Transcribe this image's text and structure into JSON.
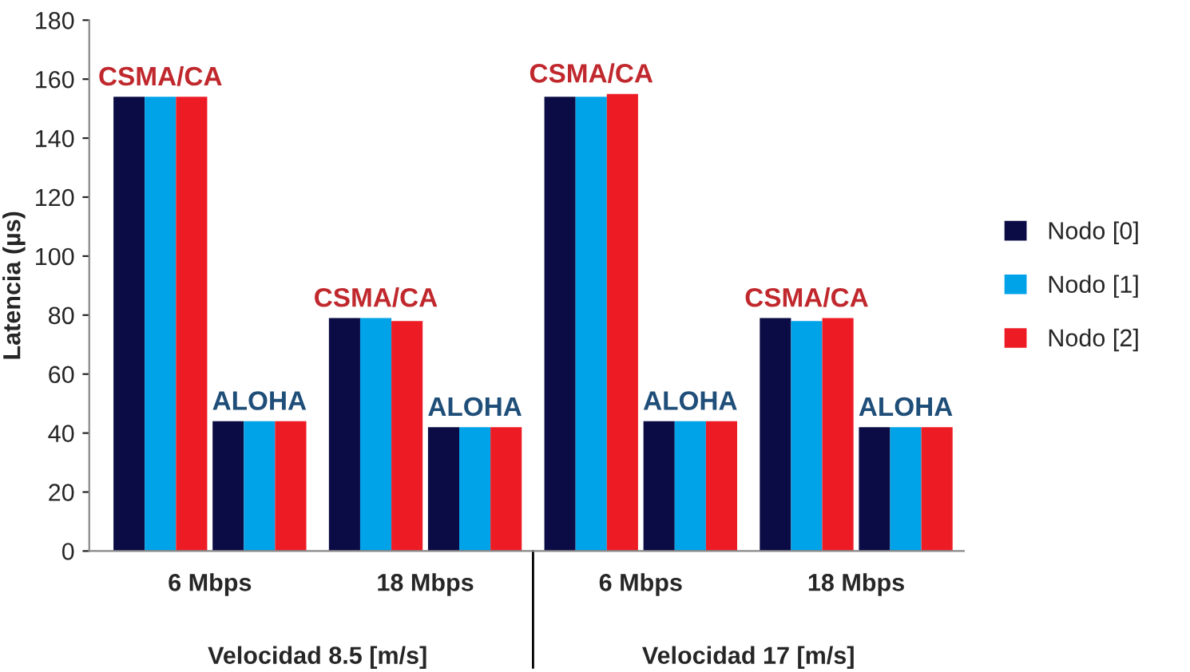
{
  "chart_data": {
    "type": "bar",
    "ylabel": "Latencia (µs)",
    "categories": [
      "6 Mbps",
      "18 Mbps",
      "6 Mbps",
      "18 Mbps"
    ],
    "series": [
      {
        "name": "Nodo [0]",
        "color": "#0b0b45",
        "values": [
          154,
          79,
          154,
          79
        ]
      },
      {
        "name": "Nodo [1]",
        "color": "#00a2e8",
        "values": [
          154,
          79,
          154,
          78
        ]
      },
      {
        "name": "Nodo [2]",
        "color": "#ed1c24",
        "values": [
          154,
          78,
          155,
          79
        ]
      },
      {
        "color": "#0b0b45",
        "values": [
          44,
          42,
          44,
          42
        ]
      },
      {
        "color": "#00a2e8",
        "values": [
          44,
          42,
          44,
          42
        ]
      },
      {
        "color": "#ed1c24",
        "values": [
          44,
          42,
          44,
          42
        ]
      }
    ],
    "annotations": [
      "CSMA/CA",
      "ALOHA",
      "CSMA/CA",
      "ALOHA",
      "CSMA/CA",
      "ALOHA",
      "CSMA/CA",
      "ALOHA",
      "Velocidad 8.5 [m/s]",
      "Velocidad 17 [m/s]"
    ],
    "ylim": [
      0,
      180
    ],
    "yticks": [
      0,
      20,
      40,
      60,
      80,
      100,
      120,
      140,
      160,
      180
    ],
    "legend": "right",
    "grid": false
  }
}
